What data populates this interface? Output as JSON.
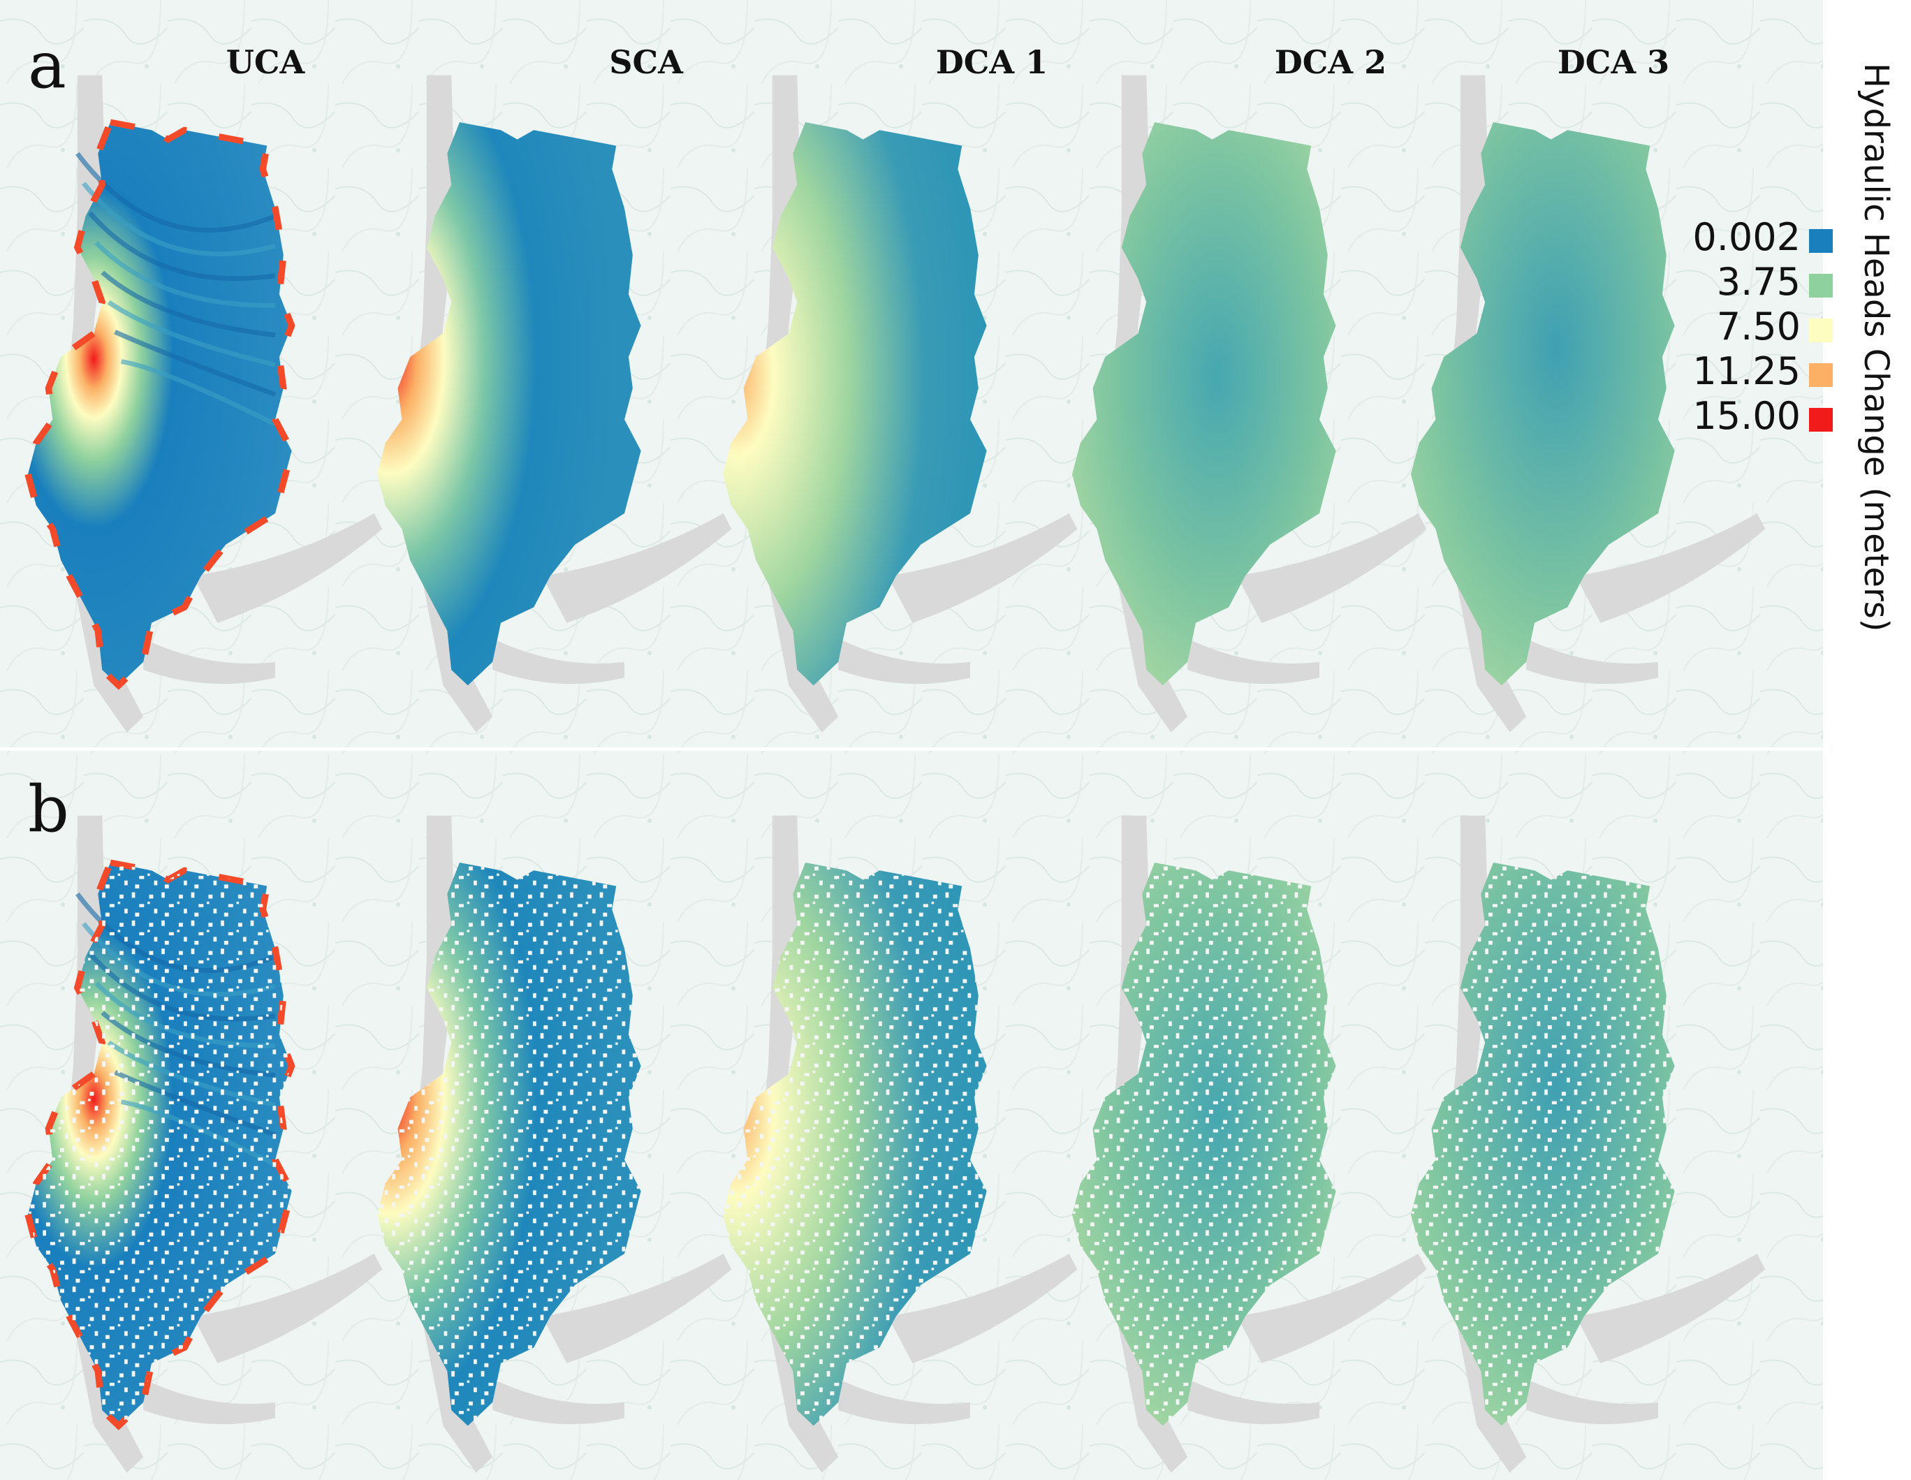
{
  "panels": [
    {
      "letter": "a"
    },
    {
      "letter": "b"
    }
  ],
  "columns": [
    "UCA",
    "SCA",
    "DCA 1",
    "DCA 2",
    "DCA 3"
  ],
  "legend": {
    "title": "Hydraulic Heads Change (meters)",
    "stops": [
      {
        "label": "0.002",
        "value": 0.002,
        "color": "#1a7fbd"
      },
      {
        "label": "3.75",
        "value": 3.75,
        "color": "#8fd19e"
      },
      {
        "label": "7.50",
        "value": 7.5,
        "color": "#fdfcc1"
      },
      {
        "label": "11.25",
        "value": 11.25,
        "color": "#fbb066"
      },
      {
        "label": "15.00",
        "value": 15.0,
        "color": "#f21b1b"
      }
    ]
  },
  "colors": {
    "basemap": "#eef5f2",
    "river": "#d9d9d9",
    "panel_b_gap": "#f3f6f4"
  }
}
